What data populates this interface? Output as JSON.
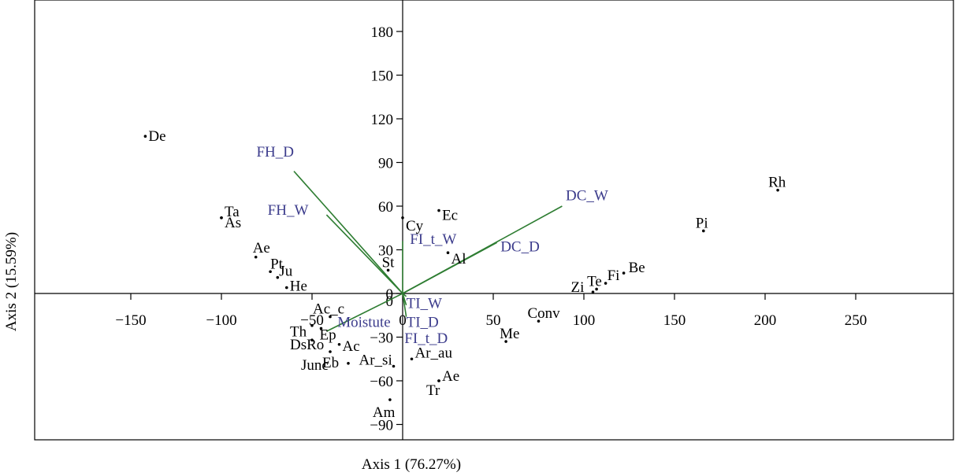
{
  "chart_data": {
    "type": "scatter",
    "xlabel": "Axis 1 (76.27%)",
    "ylabel": "Axis 2 (15.59%)",
    "xlim": [
      -200,
      300
    ],
    "ylim": [
      -100,
      200
    ],
    "x_ticks": [
      -150,
      -100,
      -50,
      0,
      50,
      100,
      150,
      200,
      250
    ],
    "y_ticks": [
      -90,
      -60,
      -30,
      0,
      30,
      60,
      90,
      120,
      150,
      180
    ],
    "grid": false,
    "colors": {
      "points": "#000000",
      "vectors": "#2e7d32",
      "vector_labels": "#3c3c8c",
      "frame": "#000000"
    },
    "points": [
      {
        "label": "De",
        "x": -142,
        "y": 108
      },
      {
        "label": "Ta",
        "x": -100,
        "y": 52
      },
      {
        "label": "As",
        "x": -100,
        "y": 52
      },
      {
        "label": "Ae",
        "x": -81,
        "y": 25
      },
      {
        "label": "Pt",
        "x": -73,
        "y": 15
      },
      {
        "label": "Ju",
        "x": -69,
        "y": 11
      },
      {
        "label": "He",
        "x": -64,
        "y": 4
      },
      {
        "label": "St",
        "x": -8,
        "y": 16
      },
      {
        "label": "Cy",
        "x": 0,
        "y": 52
      },
      {
        "label": "Ec",
        "x": 20,
        "y": 57
      },
      {
        "label": "Al",
        "x": 25,
        "y": 28
      },
      {
        "label": "Rh",
        "x": 207,
        "y": 71
      },
      {
        "label": "Pi",
        "x": 166,
        "y": 43
      },
      {
        "label": "Be",
        "x": 122,
        "y": 14
      },
      {
        "label": "Fi",
        "x": 112,
        "y": 7
      },
      {
        "label": "Te",
        "x": 107,
        "y": 3
      },
      {
        "label": "Zi",
        "x": 105,
        "y": 1
      },
      {
        "label": "Conv",
        "x": 75,
        "y": -19
      },
      {
        "label": "Me",
        "x": 57,
        "y": -33
      },
      {
        "label": "Ac_c",
        "x": -40,
        "y": -16
      },
      {
        "label": "Th",
        "x": -50,
        "y": -22
      },
      {
        "label": "Ep",
        "x": -45,
        "y": -24
      },
      {
        "label": "DsRo",
        "x": -50,
        "y": -32
      },
      {
        "label": "Ac",
        "x": -35,
        "y": -35
      },
      {
        "label": "Eb",
        "x": -40,
        "y": -40
      },
      {
        "label": "Junc",
        "x": -30,
        "y": -48
      },
      {
        "label": "Ar_si",
        "x": -5,
        "y": -50
      },
      {
        "label": "Ar_au",
        "x": 5,
        "y": -45
      },
      {
        "label": "Ae",
        "x": 20,
        "y": -60
      },
      {
        "label": "Tr",
        "x": 20,
        "y": -60
      },
      {
        "label": "Am",
        "x": -7,
        "y": -73
      }
    ],
    "vectors": [
      {
        "label": "FH_D",
        "x": -60,
        "y": 84
      },
      {
        "label": "FH_W",
        "x": -42,
        "y": 54
      },
      {
        "label": "DC_W",
        "x": 88,
        "y": 60
      },
      {
        "label": "DC_D",
        "x": 52,
        "y": 35
      },
      {
        "label": "FI_t_W",
        "x": 0,
        "y": 36
      },
      {
        "label": "TI_W",
        "x": 2,
        "y": -2
      },
      {
        "label": "TI_D",
        "x": 2,
        "y": -8
      },
      {
        "label": "Moistute",
        "x": -42,
        "y": -26
      },
      {
        "label": "FI_t_D",
        "x": 2,
        "y": -16
      }
    ]
  }
}
